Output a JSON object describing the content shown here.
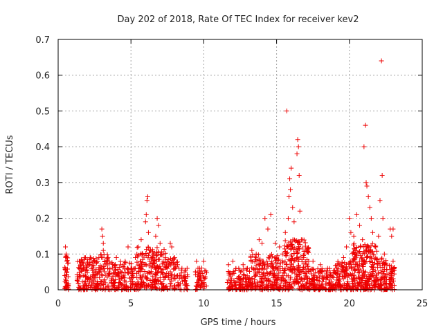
{
  "chart_data": {
    "type": "scatter",
    "title": "Day 202 of 2018, Rate Of TEC Index for receiver kev2",
    "xlabel": "GPS time / hours",
    "ylabel": "ROTI / TECUs",
    "xlim": [
      0,
      25
    ],
    "ylim": [
      0,
      0.7
    ],
    "xticks": [
      0,
      5,
      10,
      15,
      20,
      25
    ],
    "yticks": [
      0,
      0.1,
      0.2,
      0.3,
      0.4,
      0.5,
      0.6,
      0.7
    ],
    "xtick_labels": [
      "0",
      "5",
      "10",
      "15",
      "20",
      "25"
    ],
    "ytick_labels": [
      "0",
      "0.1",
      "0.2",
      "0.3",
      "0.4",
      "0.5",
      "0.6",
      "0.7"
    ],
    "grid": true,
    "marker": "plus",
    "color": "#ee0000",
    "series": [
      {
        "name": "ROTI",
        "points": [
          [
            0.5,
            0.12
          ],
          [
            0.55,
            0.1
          ],
          [
            0.6,
            0.08
          ],
          [
            0.6,
            0.05
          ],
          [
            0.5,
            0.03
          ],
          [
            0.55,
            0.02
          ],
          [
            0.6,
            0.09
          ],
          [
            1.5,
            0.08
          ],
          [
            1.6,
            0.06
          ],
          [
            1.8,
            0.09
          ],
          [
            2.0,
            0.07
          ],
          [
            2.2,
            0.09
          ],
          [
            2.5,
            0.08
          ],
          [
            2.8,
            0.09
          ],
          [
            3.0,
            0.17
          ],
          [
            3.05,
            0.15
          ],
          [
            3.1,
            0.13
          ],
          [
            3.1,
            0.11
          ],
          [
            3.2,
            0.08
          ],
          [
            3.4,
            0.06
          ],
          [
            3.5,
            0.05
          ],
          [
            4.0,
            0.09
          ],
          [
            4.3,
            0.07
          ],
          [
            4.6,
            0.08
          ],
          [
            4.8,
            0.12
          ],
          [
            5.0,
            0.06
          ],
          [
            5.3,
            0.09
          ],
          [
            5.5,
            0.12
          ],
          [
            5.7,
            0.14
          ],
          [
            5.8,
            0.1
          ],
          [
            6.0,
            0.19
          ],
          [
            6.05,
            0.21
          ],
          [
            6.1,
            0.25
          ],
          [
            6.15,
            0.26
          ],
          [
            6.2,
            0.16
          ],
          [
            6.3,
            0.11
          ],
          [
            6.5,
            0.09
          ],
          [
            6.7,
            0.15
          ],
          [
            6.8,
            0.2
          ],
          [
            6.9,
            0.18
          ],
          [
            7.0,
            0.13
          ],
          [
            7.2,
            0.08
          ],
          [
            7.5,
            0.06
          ],
          [
            7.7,
            0.13
          ],
          [
            7.8,
            0.12
          ],
          [
            8.0,
            0.09
          ],
          [
            8.2,
            0.07
          ],
          [
            8.5,
            0.06
          ],
          [
            8.7,
            0.05
          ],
          [
            9.5,
            0.08
          ],
          [
            9.6,
            0.06
          ],
          [
            9.8,
            0.05
          ],
          [
            10.0,
            0.08
          ],
          [
            11.7,
            0.07
          ],
          [
            12.0,
            0.08
          ],
          [
            12.4,
            0.06
          ],
          [
            12.7,
            0.07
          ],
          [
            13.0,
            0.06
          ],
          [
            13.3,
            0.11
          ],
          [
            13.6,
            0.1
          ],
          [
            13.8,
            0.14
          ],
          [
            14.0,
            0.13
          ],
          [
            14.2,
            0.2
          ],
          [
            14.4,
            0.17
          ],
          [
            14.6,
            0.21
          ],
          [
            14.9,
            0.13
          ],
          [
            15.2,
            0.12
          ],
          [
            15.4,
            0.1
          ],
          [
            15.6,
            0.16
          ],
          [
            15.7,
            0.5
          ],
          [
            15.8,
            0.2
          ],
          [
            15.85,
            0.26
          ],
          [
            15.9,
            0.31
          ],
          [
            15.95,
            0.28
          ],
          [
            16.0,
            0.34
          ],
          [
            16.1,
            0.23
          ],
          [
            16.2,
            0.19
          ],
          [
            16.4,
            0.38
          ],
          [
            16.45,
            0.42
          ],
          [
            16.5,
            0.4
          ],
          [
            16.55,
            0.32
          ],
          [
            16.6,
            0.22
          ],
          [
            16.7,
            0.14
          ],
          [
            16.9,
            0.1
          ],
          [
            17.2,
            0.08
          ],
          [
            17.5,
            0.08
          ],
          [
            18.0,
            0.07
          ],
          [
            18.5,
            0.06
          ],
          [
            19.0,
            0.05
          ],
          [
            19.3,
            0.07
          ],
          [
            19.6,
            0.09
          ],
          [
            19.8,
            0.12
          ],
          [
            20.0,
            0.2
          ],
          [
            20.1,
            0.16
          ],
          [
            20.3,
            0.15
          ],
          [
            20.5,
            0.21
          ],
          [
            20.7,
            0.18
          ],
          [
            20.9,
            0.14
          ],
          [
            21.0,
            0.4
          ],
          [
            21.1,
            0.46
          ],
          [
            21.15,
            0.3
          ],
          [
            21.2,
            0.29
          ],
          [
            21.3,
            0.26
          ],
          [
            21.4,
            0.23
          ],
          [
            21.5,
            0.2
          ],
          [
            21.6,
            0.16
          ],
          [
            21.8,
            0.12
          ],
          [
            22.0,
            0.15
          ],
          [
            22.1,
            0.25
          ],
          [
            22.2,
            0.64
          ],
          [
            22.25,
            0.32
          ],
          [
            22.3,
            0.2
          ],
          [
            22.4,
            0.1
          ],
          [
            22.8,
            0.17
          ],
          [
            22.9,
            0.15
          ],
          [
            23.0,
            0.17
          ],
          [
            23.0,
            0.08
          ],
          [
            22.9,
            0.04
          ]
        ]
      }
    ],
    "dense_bands": [
      {
        "x0": 0.45,
        "x1": 0.75,
        "lo": 0.0,
        "hi": 0.1,
        "n": 34
      },
      {
        "x0": 1.3,
        "x1": 2.9,
        "lo": 0.0,
        "hi": 0.09,
        "n": 150
      },
      {
        "x0": 2.9,
        "x1": 3.6,
        "lo": 0.0,
        "hi": 0.1,
        "n": 50
      },
      {
        "x0": 3.6,
        "x1": 5.4,
        "lo": 0.0,
        "hi": 0.08,
        "n": 140
      },
      {
        "x0": 5.4,
        "x1": 7.4,
        "lo": 0.0,
        "hi": 0.12,
        "n": 210
      },
      {
        "x0": 7.4,
        "x1": 8.2,
        "lo": 0.0,
        "hi": 0.09,
        "n": 55
      },
      {
        "x0": 8.2,
        "x1": 8.9,
        "lo": 0.0,
        "hi": 0.06,
        "n": 40
      },
      {
        "x0": 9.4,
        "x1": 10.2,
        "lo": 0.0,
        "hi": 0.07,
        "n": 48
      },
      {
        "x0": 11.6,
        "x1": 13.2,
        "lo": 0.0,
        "hi": 0.06,
        "n": 120
      },
      {
        "x0": 13.2,
        "x1": 15.5,
        "lo": 0.0,
        "hi": 0.1,
        "n": 220
      },
      {
        "x0": 15.5,
        "x1": 17.2,
        "lo": 0.0,
        "hi": 0.14,
        "n": 210
      },
      {
        "x0": 17.2,
        "x1": 19.0,
        "lo": 0.0,
        "hi": 0.06,
        "n": 140
      },
      {
        "x0": 19.0,
        "x1": 20.2,
        "lo": 0.0,
        "hi": 0.08,
        "n": 110
      },
      {
        "x0": 20.2,
        "x1": 21.9,
        "lo": 0.0,
        "hi": 0.13,
        "n": 230
      },
      {
        "x0": 21.9,
        "x1": 22.6,
        "lo": 0.0,
        "hi": 0.09,
        "n": 80
      },
      {
        "x0": 22.7,
        "x1": 23.1,
        "lo": 0.0,
        "hi": 0.07,
        "n": 40
      }
    ]
  }
}
